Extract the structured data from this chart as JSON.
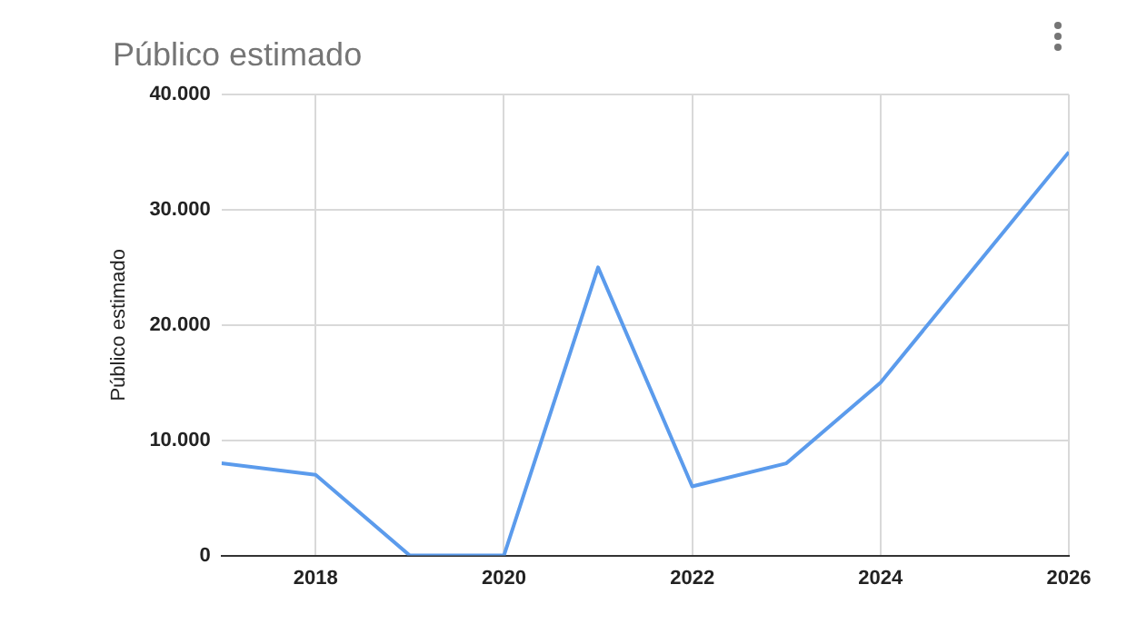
{
  "chart_data": {
    "type": "line",
    "title": "Público estimado",
    "ylabel": "Público estimado",
    "x": [
      2017,
      2018,
      2019,
      2020,
      2021,
      2022,
      2023,
      2024,
      2025,
      2026
    ],
    "series": [
      {
        "color": "#5b9bec",
        "values": [
          8000,
          7000,
          0,
          0,
          25000,
          6000,
          8000,
          15000,
          25000,
          35000
        ]
      }
    ],
    "xlim": [
      2017,
      2026
    ],
    "xticks": [
      2018,
      2020,
      2022,
      2024,
      2026
    ],
    "ylim": [
      0,
      40000
    ],
    "yticks": [
      0,
      {
        "value": 10000,
        "label": "10.000"
      },
      {
        "value": 20000,
        "label": "20.000"
      },
      {
        "value": 30000,
        "label": "30.000"
      },
      {
        "value": 40000,
        "label": "40.000"
      }
    ],
    "grid": true,
    "legend": false,
    "marker": "none",
    "line_style": "solid"
  }
}
